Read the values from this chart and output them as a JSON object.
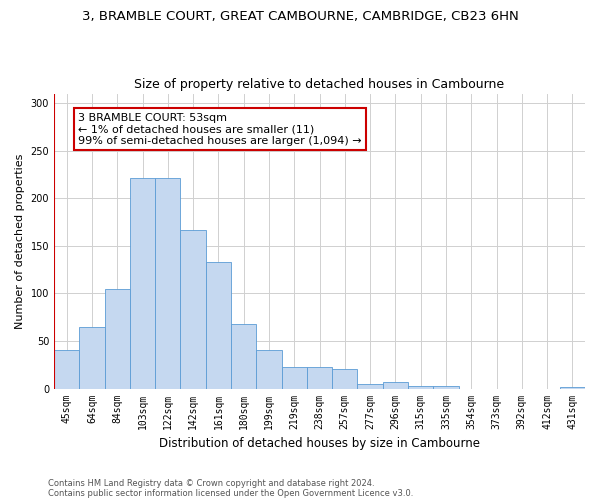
{
  "title": "3, BRAMBLE COURT, GREAT CAMBOURNE, CAMBRIDGE, CB23 6HN",
  "subtitle": "Size of property relative to detached houses in Cambourne",
  "xlabel": "Distribution of detached houses by size in Cambourne",
  "ylabel": "Number of detached properties",
  "categories": [
    "45sqm",
    "64sqm",
    "84sqm",
    "103sqm",
    "122sqm",
    "142sqm",
    "161sqm",
    "180sqm",
    "199sqm",
    "219sqm",
    "238sqm",
    "257sqm",
    "277sqm",
    "296sqm",
    "315sqm",
    "335sqm",
    "354sqm",
    "373sqm",
    "392sqm",
    "412sqm",
    "431sqm"
  ],
  "values": [
    40,
    65,
    105,
    221,
    221,
    167,
    133,
    68,
    40,
    23,
    23,
    21,
    5,
    7,
    3,
    3,
    0,
    0,
    0,
    0,
    2
  ],
  "bar_color": "#c5d8f0",
  "bar_edge_color": "#5b9bd5",
  "highlight_color": "#cc0000",
  "annotation_text": "3 BRAMBLE COURT: 53sqm\n← 1% of detached houses are smaller (11)\n99% of semi-detached houses are larger (1,094) →",
  "annotation_box_color": "#ffffff",
  "annotation_box_edge": "#cc0000",
  "ylim": [
    0,
    310
  ],
  "yticks": [
    0,
    50,
    100,
    150,
    200,
    250,
    300
  ],
  "grid_color": "#d0d0d0",
  "footnote1": "Contains HM Land Registry data © Crown copyright and database right 2024.",
  "footnote2": "Contains public sector information licensed under the Open Government Licence v3.0.",
  "bg_color": "#ffffff",
  "title_fontsize": 9.5,
  "subtitle_fontsize": 9,
  "ylabel_fontsize": 8,
  "xlabel_fontsize": 8.5,
  "tick_fontsize": 7,
  "annotation_fontsize": 8,
  "footnote_fontsize": 6
}
